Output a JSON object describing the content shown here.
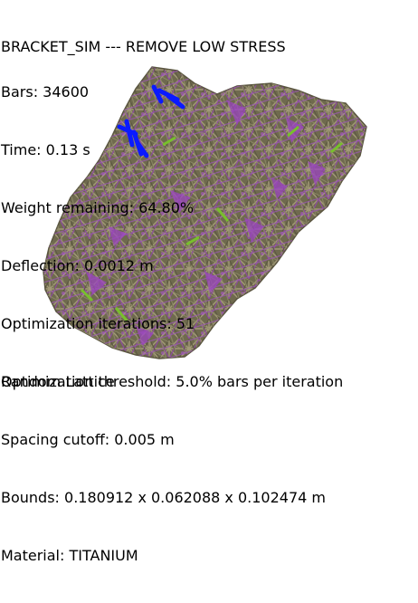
{
  "header": {
    "title": "BRACKET_SIM --- REMOVE LOW STRESS"
  },
  "stats": {
    "bars": "Bars: 34600",
    "time": "Time: 0.13 s",
    "weight": "Weight remaining: 64.80%",
    "deflection": "Deflection: 0.0012 m",
    "iterations": "Optimization iterations: 51",
    "threshold": "Optimization threshold: 5.0% bars per iteration"
  },
  "footer": {
    "lattice": "Random Lattice",
    "spacing": "Spacing cutoff: 0.005 m",
    "bounds": "Bounds: 0.180912 x 0.062088 x 0.102474 m",
    "material": "Material: TITANIUM"
  },
  "colors": {
    "background": "#ffffff",
    "text": "#000000",
    "bar_olive": "#7a7a52",
    "bar_purple": "#8c4aa0",
    "bar_green": "#6fb02e",
    "highlight_blue": "#0a1aff"
  }
}
